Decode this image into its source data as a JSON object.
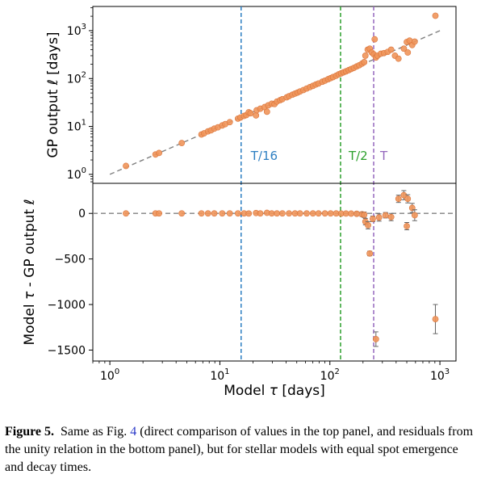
{
  "chart_data": [
    {
      "panel": "top",
      "type": "scatter",
      "xscale": "log",
      "yscale": "log",
      "xlim": [
        0.7,
        1400
      ],
      "ylim": [
        0.65,
        3200
      ],
      "ylabel": "GP output ℓ [days]",
      "yticks": [
        {
          "v": 1,
          "base": "10",
          "exp": "0"
        },
        {
          "v": 10,
          "base": "10",
          "exp": "1"
        },
        {
          "v": 100,
          "base": "10",
          "exp": "2"
        },
        {
          "v": 1000,
          "base": "10",
          "exp": "3"
        }
      ],
      "reference_line": {
        "x": [
          1,
          1000
        ],
        "y": [
          1,
          1000
        ],
        "color": "#808080",
        "style": "dashed"
      },
      "points": [
        [
          1.4,
          1.5
        ],
        [
          2.6,
          2.6
        ],
        [
          2.8,
          2.8
        ],
        [
          4.5,
          4.5
        ],
        [
          6.8,
          6.8
        ],
        [
          7.2,
          7.2
        ],
        [
          7.8,
          7.9
        ],
        [
          8.3,
          8.3
        ],
        [
          8.9,
          9.0
        ],
        [
          9.6,
          9.6
        ],
        [
          10.5,
          10.5
        ],
        [
          11.2,
          11.2
        ],
        [
          12.3,
          12.3
        ],
        [
          14.6,
          14.6
        ],
        [
          15.4,
          15.4
        ],
        [
          16.6,
          16.6
        ],
        [
          17.4,
          17.3
        ],
        [
          18.3,
          19.8
        ],
        [
          19.0,
          18.9
        ],
        [
          21.3,
          17.0
        ],
        [
          21.6,
          21.8
        ],
        [
          23.3,
          23.5
        ],
        [
          25.5,
          25.4
        ],
        [
          26.8,
          20.3
        ],
        [
          27.5,
          27.6
        ],
        [
          29.6,
          29.8
        ],
        [
          31.4,
          29.3
        ],
        [
          33.0,
          33.1
        ],
        [
          35.3,
          35.4
        ],
        [
          37.0,
          37.2
        ],
        [
          40.5,
          40.6
        ],
        [
          42.5,
          42.8
        ],
        [
          45.6,
          46.0
        ],
        [
          48.2,
          48.6
        ],
        [
          50.8,
          50.9
        ],
        [
          53.5,
          53.8
        ],
        [
          57.4,
          57.6
        ],
        [
          61.5,
          62.0
        ],
        [
          65.8,
          66.3
        ],
        [
          70.1,
          70.4
        ],
        [
          74.5,
          75.1
        ],
        [
          78.8,
          79.0
        ],
        [
          85.4,
          85.9
        ],
        [
          90.2,
          90.3
        ],
        [
          96.4,
          97.0
        ],
        [
          101.5,
          102.0
        ],
        [
          106.8,
          107.4
        ],
        [
          114.0,
          114.5
        ],
        [
          120.2,
          122.5
        ],
        [
          126.5,
          128.5
        ],
        [
          133.2,
          135.0
        ],
        [
          140.1,
          141.5
        ],
        [
          148.5,
          150.1
        ],
        [
          156.0,
          158.0
        ],
        [
          165.4,
          167.1
        ],
        [
          175.2,
          179.2
        ],
        [
          185.1,
          190.2
        ],
        [
          196.0,
          205.4
        ],
        [
          205.0,
          220.3
        ],
        [
          210.2,
          300.5
        ],
        [
          220.6,
          400.2
        ],
        [
          230.3,
          420.5
        ],
        [
          240.1,
          350.4
        ],
        [
          250.2,
          320.6
        ],
        [
          255.4,
          660.8
        ],
        [
          262.1,
          275.4
        ],
        [
          270.3,
          300.1
        ],
        [
          290.5,
          330.2
        ],
        [
          310.2,
          340.5
        ],
        [
          335.3,
          360.6
        ],
        [
          360.4,
          400.2
        ],
        [
          390.5,
          300.3
        ],
        [
          420.1,
          260.4
        ],
        [
          470.2,
          420.5
        ],
        [
          500.1,
          580.3
        ],
        [
          510.4,
          350.2
        ],
        [
          530.3,
          620.8
        ],
        [
          560.2,
          500.4
        ],
        [
          590.1,
          590.3
        ],
        [
          910.2,
          2050.5
        ]
      ],
      "marker_color": "#f0955a",
      "vlines": [
        {
          "x": 15.6,
          "label": "T/16",
          "color": "#2d7fc2"
        },
        {
          "x": 125,
          "label": "T/2",
          "color": "#2ca02c"
        },
        {
          "x": 250,
          "label": "T",
          "color": "#9467bd"
        }
      ]
    },
    {
      "panel": "bottom",
      "type": "scatter",
      "xscale": "log",
      "xlim": [
        0.7,
        1400
      ],
      "ylim": [
        -1620,
        330
      ],
      "xlabel": "Model τ [days]",
      "ylabel": "Model τ - GP output ℓ",
      "yticks": [
        {
          "v": 0,
          "label": "0"
        },
        {
          "v": -500,
          "label": "−500"
        },
        {
          "v": -1000,
          "label": "−1000"
        },
        {
          "v": -1500,
          "label": "−1500"
        }
      ],
      "xticks": [
        {
          "v": 1,
          "base": "10",
          "exp": "0"
        },
        {
          "v": 10,
          "base": "10",
          "exp": "1"
        },
        {
          "v": 100,
          "base": "10",
          "exp": "2"
        },
        {
          "v": 1000,
          "base": "10",
          "exp": "3"
        }
      ],
      "reference_line": {
        "y": 0,
        "color": "#808080",
        "style": "dashed"
      },
      "points": [
        [
          1.4,
          -0.1,
          0
        ],
        [
          2.6,
          0,
          0
        ],
        [
          2.8,
          0,
          0
        ],
        [
          4.5,
          0,
          0
        ],
        [
          6.8,
          0,
          0
        ],
        [
          7.8,
          -0.1,
          0
        ],
        [
          8.9,
          -0.1,
          0
        ],
        [
          10.5,
          0,
          0
        ],
        [
          12.3,
          0,
          0
        ],
        [
          14.6,
          0,
          0
        ],
        [
          16.6,
          0.1,
          0
        ],
        [
          18.3,
          -1.5,
          0
        ],
        [
          21.3,
          4.3,
          0
        ],
        [
          23.3,
          -0.2,
          0
        ],
        [
          26.8,
          6.5,
          0
        ],
        [
          29.6,
          -0.2,
          0
        ],
        [
          33.0,
          -0.1,
          0
        ],
        [
          37.0,
          -0.2,
          0
        ],
        [
          42.5,
          -0.3,
          0
        ],
        [
          48.2,
          -0.4,
          0
        ],
        [
          53.5,
          -0.3,
          0
        ],
        [
          61.5,
          -0.5,
          0
        ],
        [
          70.1,
          -0.3,
          0
        ],
        [
          78.8,
          -0.2,
          0
        ],
        [
          90.2,
          -0.1,
          0
        ],
        [
          101.5,
          -0.5,
          0
        ],
        [
          114.0,
          -0.5,
          0
        ],
        [
          126.5,
          -2,
          0
        ],
        [
          140.1,
          -1.4,
          0
        ],
        [
          156.0,
          -2,
          0
        ],
        [
          175.2,
          -4,
          20
        ],
        [
          196.0,
          -9,
          25
        ],
        [
          205.0,
          -15,
          30
        ],
        [
          210.2,
          -90,
          35
        ],
        [
          222.3,
          -130,
          40
        ],
        [
          230.3,
          -440,
          25
        ],
        [
          245.4,
          -60,
          30
        ],
        [
          262.1,
          -1380,
          80
        ],
        [
          280.1,
          -45,
          40
        ],
        [
          320.2,
          -20,
          30
        ],
        [
          360.4,
          -40,
          40
        ],
        [
          420.1,
          160,
          40
        ],
        [
          470.2,
          200,
          50
        ],
        [
          500.1,
          -140,
          40
        ],
        [
          510.4,
          160,
          45
        ],
        [
          560.2,
          60,
          50
        ],
        [
          590.1,
          -20,
          60
        ],
        [
          910.2,
          -1160,
          160
        ]
      ],
      "marker_color": "#f0955a"
    }
  ],
  "labels": {
    "xlabel_prefix": "Model ",
    "xlabel_symbol": "τ",
    "xlabel_suffix": " [days]",
    "top_ylabel_prefix": "GP output ",
    "top_ylabel_symbol": "ℓ",
    "top_ylabel_suffix": " [days]",
    "bottom_ylabel_prefix": "Model ",
    "bottom_ylabel_symbol": "τ",
    "bottom_ylabel_mid": " - GP output ",
    "bottom_ylabel_symbol2": "ℓ"
  },
  "caption": {
    "figure_label": "Figure 5.",
    "text_before_ref": "Same as Fig. ",
    "ref": "4",
    "text_after_ref": " (direct comparison of values in the top panel, and residuals from the unity relation in the bottom panel), but for stellar models with equal spot emergence and decay times."
  }
}
